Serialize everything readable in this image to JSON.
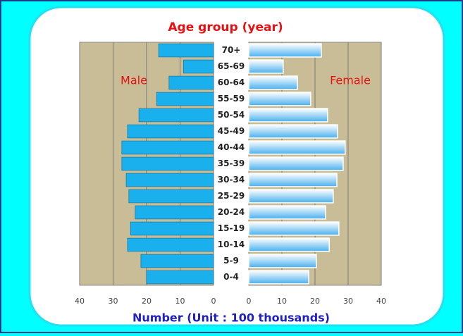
{
  "chart_data": {
    "type": "pyramid",
    "title": "Age group (year)",
    "x_label": "Number (Unit : 100 thousands)",
    "categories": [
      "0-4",
      "5-9",
      "10-14",
      "15-19",
      "20-24",
      "25-29",
      "30-34",
      "35-39",
      "40-44",
      "45-49",
      "50-54",
      "55-59",
      "60-64",
      "65-69",
      "70+"
    ],
    "series": [
      {
        "name": "Male",
        "color": "#1ab0ee",
        "values": [
          20,
          21.7,
          25.7,
          24.8,
          23.4,
          25.3,
          26.1,
          27.4,
          27.4,
          25.7,
          22.3,
          17,
          13.3,
          9,
          16.4
        ]
      },
      {
        "name": "Female",
        "color": "#5ab8f0",
        "values": [
          18.1,
          20.4,
          24.3,
          27.2,
          23.2,
          25.5,
          26.6,
          28.5,
          29.1,
          26.8,
          23.8,
          18.7,
          14.7,
          10.4,
          21.9
        ]
      }
    ],
    "xlim": [
      0,
      40
    ],
    "xticks": [
      0,
      10,
      20,
      30,
      40
    ],
    "grid": true
  }
}
